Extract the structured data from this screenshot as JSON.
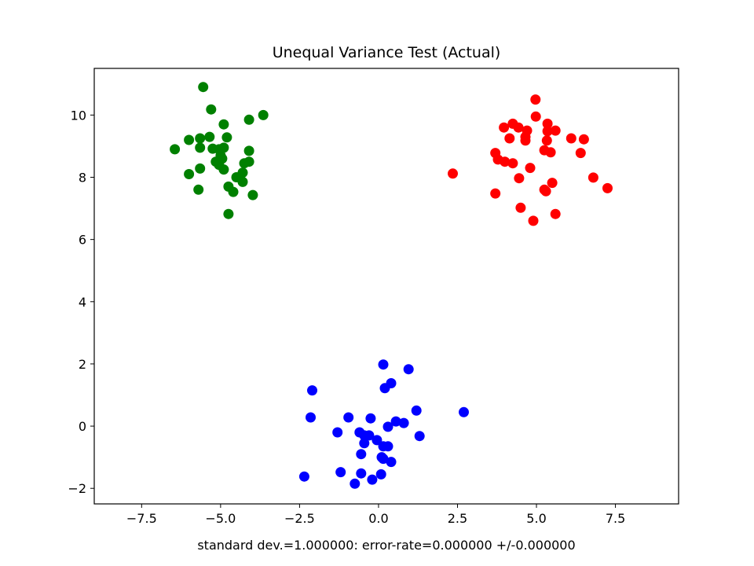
{
  "chart_data": {
    "type": "scatter",
    "title": "Unequal Variance Test (Actual)",
    "xlabel": "standard dev.=1.000000: error-rate=0.000000 +/-0.000000",
    "ylabel": "",
    "xlim": [
      -9,
      9.5
    ],
    "ylim": [
      -2.5,
      11.5
    ],
    "xticks": [
      -7.5,
      -5.0,
      -2.5,
      0.0,
      2.5,
      5.0,
      7.5
    ],
    "xtick_labels": [
      "−7.5",
      "−5.0",
      "−2.5",
      "0.0",
      "2.5",
      "5.0",
      "7.5"
    ],
    "yticks": [
      -2,
      0,
      2,
      4,
      6,
      8,
      10
    ],
    "ytick_labels": [
      "−2",
      "0",
      "2",
      "4",
      "6",
      "8",
      "10"
    ],
    "grid": false,
    "series": [
      {
        "color": "#ff0000",
        "points": [
          [
            4.97,
            10.5
          ],
          [
            4.98,
            9.95
          ],
          [
            5.35,
            9.72
          ],
          [
            4.25,
            9.72
          ],
          [
            3.97,
            9.6
          ],
          [
            4.43,
            9.6
          ],
          [
            4.7,
            9.5
          ],
          [
            5.35,
            9.48
          ],
          [
            5.6,
            9.5
          ],
          [
            4.65,
            9.3
          ],
          [
            4.15,
            9.25
          ],
          [
            6.1,
            9.25
          ],
          [
            6.5,
            9.22
          ],
          [
            4.65,
            9.18
          ],
          [
            5.33,
            9.18
          ],
          [
            5.25,
            8.87
          ],
          [
            5.45,
            8.8
          ],
          [
            6.4,
            8.78
          ],
          [
            3.7,
            8.78
          ],
          [
            3.78,
            8.57
          ],
          [
            4.0,
            8.5
          ],
          [
            4.25,
            8.45
          ],
          [
            4.8,
            8.3
          ],
          [
            2.35,
            8.12
          ],
          [
            4.45,
            7.97
          ],
          [
            6.8,
            7.99
          ],
          [
            5.5,
            7.82
          ],
          [
            7.25,
            7.65
          ],
          [
            5.25,
            7.6
          ],
          [
            5.3,
            7.55
          ],
          [
            3.7,
            7.48
          ],
          [
            4.5,
            7.02
          ],
          [
            5.6,
            6.82
          ],
          [
            4.9,
            6.6
          ]
        ]
      },
      {
        "color": "#008000",
        "points": [
          [
            -5.55,
            10.9
          ],
          [
            -5.3,
            10.18
          ],
          [
            -3.65,
            10.0
          ],
          [
            -4.1,
            9.85
          ],
          [
            -4.9,
            9.7
          ],
          [
            -5.65,
            9.25
          ],
          [
            -5.35,
            9.3
          ],
          [
            -4.8,
            9.28
          ],
          [
            -6.0,
            9.2
          ],
          [
            -5.65,
            8.95
          ],
          [
            -4.9,
            8.95
          ],
          [
            -5.25,
            8.92
          ],
          [
            -5.05,
            8.9
          ],
          [
            -4.1,
            8.85
          ],
          [
            -6.45,
            8.9
          ],
          [
            -5.0,
            8.7
          ],
          [
            -4.95,
            8.6
          ],
          [
            -5.15,
            8.5
          ],
          [
            -4.1,
            8.5
          ],
          [
            -4.25,
            8.45
          ],
          [
            -5.05,
            8.4
          ],
          [
            -5.65,
            8.28
          ],
          [
            -4.9,
            8.25
          ],
          [
            -4.3,
            8.15
          ],
          [
            -6.0,
            8.1
          ],
          [
            -4.5,
            8.0
          ],
          [
            -4.3,
            7.85
          ],
          [
            -4.75,
            7.7
          ],
          [
            -5.7,
            7.6
          ],
          [
            -4.6,
            7.53
          ],
          [
            -3.98,
            7.43
          ],
          [
            -4.75,
            6.82
          ]
        ]
      },
      {
        "color": "#0000ff",
        "points": [
          [
            0.15,
            1.98
          ],
          [
            0.95,
            1.83
          ],
          [
            0.4,
            1.38
          ],
          [
            0.2,
            1.22
          ],
          [
            -2.1,
            1.15
          ],
          [
            2.7,
            0.45
          ],
          [
            1.2,
            0.5
          ],
          [
            -2.15,
            0.28
          ],
          [
            -0.95,
            0.28
          ],
          [
            -0.25,
            0.25
          ],
          [
            0.55,
            0.15
          ],
          [
            0.8,
            0.1
          ],
          [
            0.3,
            -0.02
          ],
          [
            -0.6,
            -0.2
          ],
          [
            -1.3,
            -0.2
          ],
          [
            -0.3,
            -0.3
          ],
          [
            -0.45,
            -0.3
          ],
          [
            1.3,
            -0.32
          ],
          [
            -0.05,
            -0.45
          ],
          [
            -0.45,
            -0.55
          ],
          [
            0.15,
            -0.65
          ],
          [
            0.3,
            -0.65
          ],
          [
            -0.55,
            -0.9
          ],
          [
            0.1,
            -1.0
          ],
          [
            0.15,
            -1.05
          ],
          [
            0.4,
            -1.15
          ],
          [
            -1.2,
            -1.48
          ],
          [
            -0.55,
            -1.52
          ],
          [
            0.08,
            -1.55
          ],
          [
            -2.35,
            -1.62
          ],
          [
            -0.2,
            -1.72
          ],
          [
            -0.75,
            -1.85
          ]
        ]
      }
    ]
  }
}
